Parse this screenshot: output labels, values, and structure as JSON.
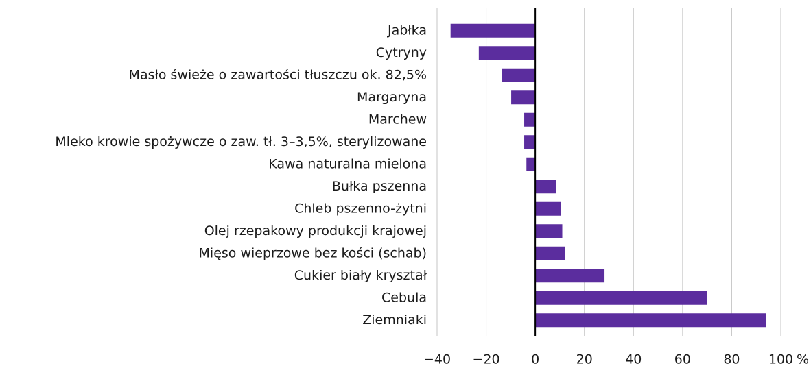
{
  "chart_data": {
    "type": "barh",
    "categories": [
      "Jabłka",
      "Cytryny",
      "Masło świeże o zawartości tłuszczu ok. 82,5%",
      "Margaryna",
      "Marchew",
      "Mleko krowie spożywcze o zaw. tł. 3–3,5%, sterylizowane",
      "Kawa naturalna mielona",
      "Bułka pszenna",
      "Chleb pszenno-żytni",
      "Olej rzepakowy produkcji krajowej",
      "Mięso wieprzowe bez kości (schab)",
      "Cukier biały kryształ",
      "Cebula",
      "Ziemniaki"
    ],
    "values": [
      -34.5,
      -23,
      -13.7,
      -9.8,
      -4.5,
      -4.5,
      -3.6,
      8.5,
      10.5,
      11,
      12,
      28.2,
      70.1,
      94.1
    ],
    "color": "#5b2d9e",
    "xlim": [
      -40,
      100
    ],
    "xticks": [
      {
        "value": -40,
        "label": "−40"
      },
      {
        "value": -20,
        "label": "−20"
      },
      0,
      20,
      40,
      60,
      80,
      100
    ],
    "x_unit": "%",
    "grid": true
  }
}
